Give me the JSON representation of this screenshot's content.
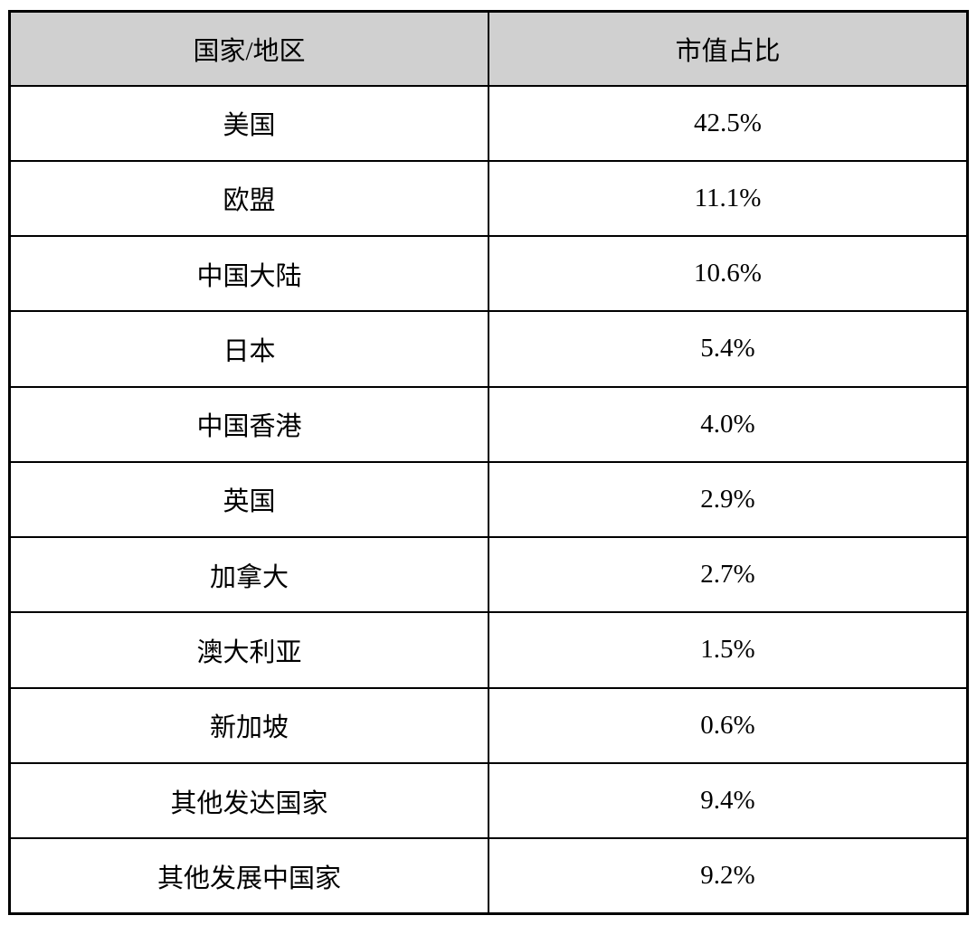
{
  "table": {
    "headers": {
      "region": "国家/地区",
      "share": "市值占比"
    },
    "rows": [
      {
        "region": "美国",
        "share": "42.5%"
      },
      {
        "region": "欧盟",
        "share": "11.1%"
      },
      {
        "region": "中国大陆",
        "share": "10.6%"
      },
      {
        "region": "日本",
        "share": "5.4%"
      },
      {
        "region": "中国香港",
        "share": "4.0%"
      },
      {
        "region": "英国",
        "share": "2.9%"
      },
      {
        "region": "加拿大",
        "share": "2.7%"
      },
      {
        "region": "澳大利亚",
        "share": "1.5%"
      },
      {
        "region": "新加坡",
        "share": "0.6%"
      },
      {
        "region": "其他发达国家",
        "share": "9.4%"
      },
      {
        "region": "其他发展中国家",
        "share": "9.2%"
      }
    ]
  },
  "colors": {
    "header_background": "#d0d0d0",
    "border": "#000000",
    "row_background": "#ffffff",
    "text": "#000000"
  },
  "chart_data": {
    "type": "table",
    "title": "",
    "columns": [
      "国家/地区",
      "市值占比"
    ],
    "categories": [
      "美国",
      "欧盟",
      "中国大陆",
      "日本",
      "中国香港",
      "英国",
      "加拿大",
      "澳大利亚",
      "新加坡",
      "其他发达国家",
      "其他发展中国家"
    ],
    "values_percent": [
      42.5,
      11.1,
      10.6,
      5.4,
      4.0,
      2.9,
      2.7,
      1.5,
      0.6,
      9.4,
      9.2
    ],
    "value_unit": "%",
    "grid": true,
    "legend_position": "none"
  }
}
